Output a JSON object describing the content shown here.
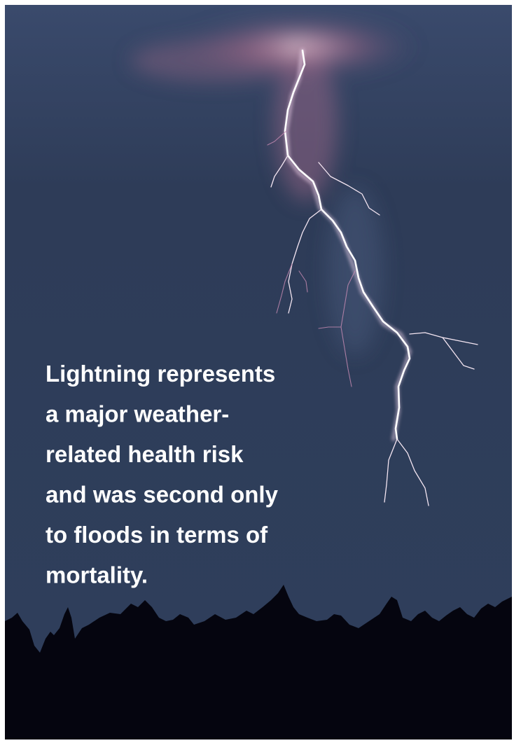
{
  "poster": {
    "text_lines": [
      "Lightning represents",
      "a major weather-",
      "related health risk",
      "and was second only",
      "to floods in terms of",
      "mortality."
    ]
  }
}
